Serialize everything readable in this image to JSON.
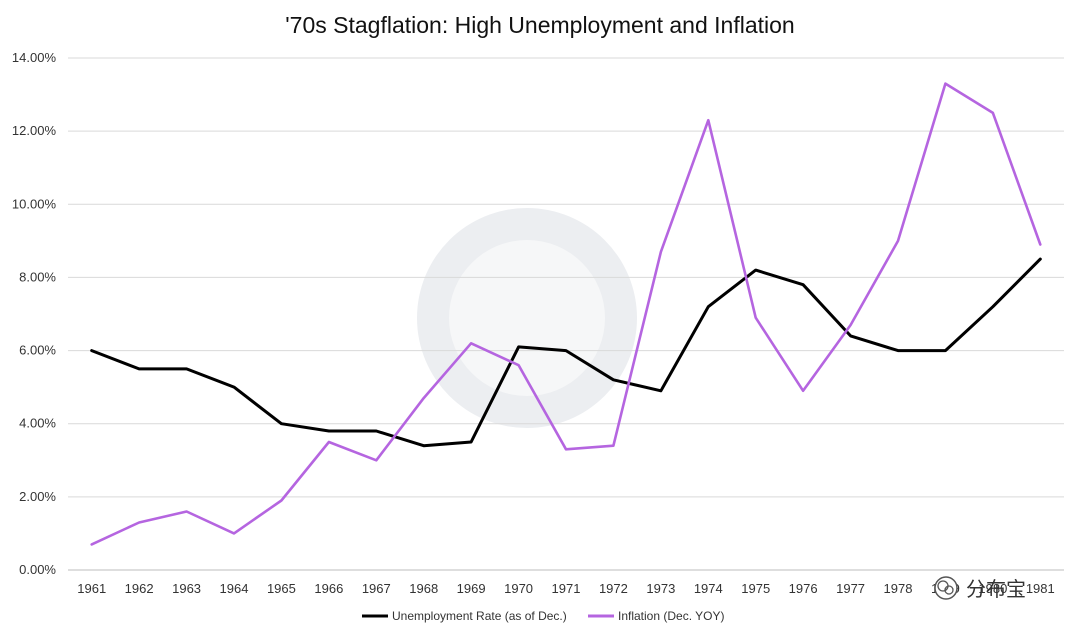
{
  "chart_data": {
    "type": "line",
    "title": "'70s Stagflation: High Unemployment and Inflation",
    "categories": [
      "1961",
      "1962",
      "1963",
      "1964",
      "1965",
      "1966",
      "1967",
      "1968",
      "1969",
      "1970",
      "1971",
      "1972",
      "1973",
      "1974",
      "1975",
      "1976",
      "1977",
      "1978",
      "1979",
      "1980",
      "1981"
    ],
    "y_ticks": [
      "0.00%",
      "2.00%",
      "4.00%",
      "6.00%",
      "8.00%",
      "10.00%",
      "12.00%",
      "14.00%"
    ],
    "ylim": [
      0,
      14
    ],
    "grid": true,
    "legend_position": "bottom",
    "series": [
      {
        "name": "Unemployment Rate (as of Dec.)",
        "color": "#000000",
        "values": [
          6.0,
          5.5,
          5.5,
          5.0,
          4.0,
          3.8,
          3.8,
          3.4,
          3.5,
          6.1,
          6.0,
          5.2,
          4.9,
          7.2,
          8.2,
          7.8,
          6.4,
          6.0,
          6.0,
          7.2,
          8.5
        ]
      },
      {
        "name": "Inflation (Dec. YOY)",
        "color": "#b565e0",
        "values": [
          0.7,
          1.3,
          1.6,
          1.0,
          1.9,
          3.5,
          3.0,
          4.7,
          6.2,
          5.6,
          3.3,
          3.4,
          8.7,
          12.3,
          6.9,
          4.9,
          6.7,
          9.0,
          13.3,
          12.5,
          8.9
        ]
      }
    ]
  },
  "watermark": {
    "text": "分布宝",
    "icon": "wechat-icon"
  }
}
